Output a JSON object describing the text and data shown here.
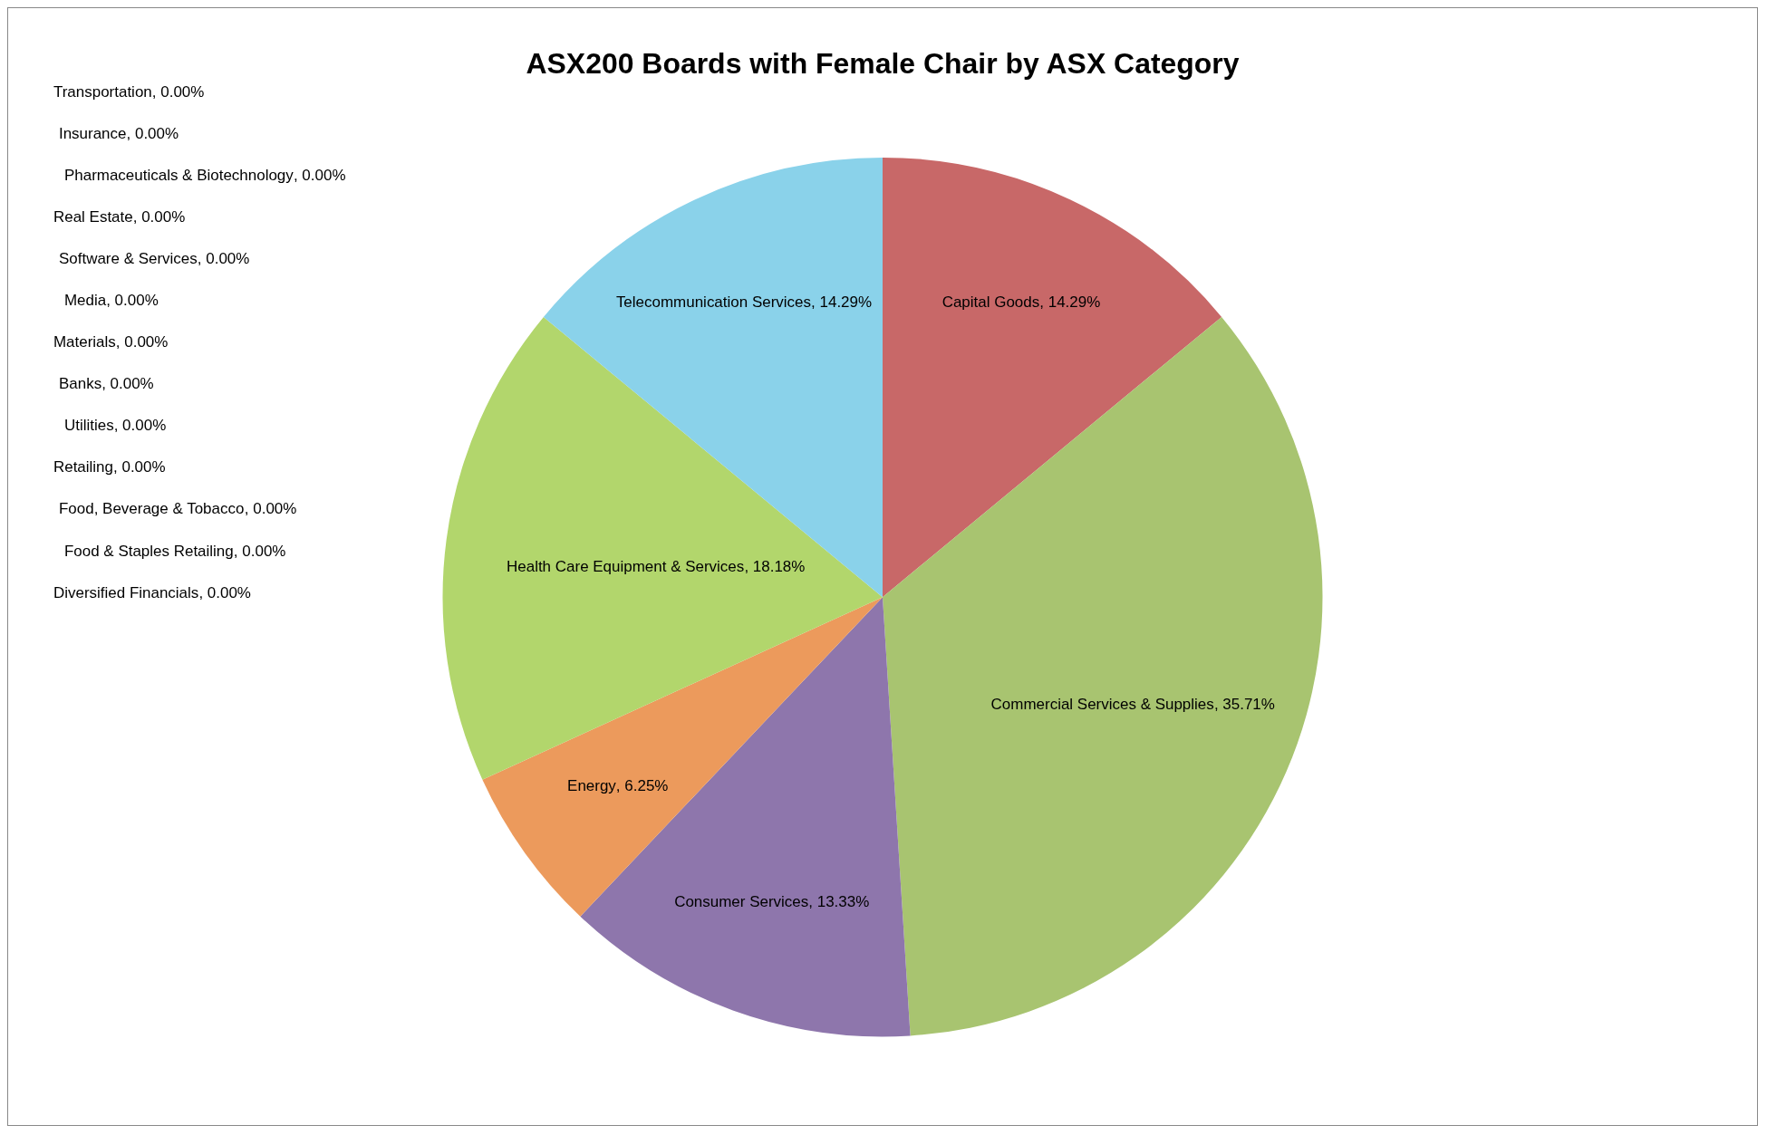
{
  "chart_data": {
    "type": "pie",
    "title": "ASX200 Boards with Female Chair by ASX Category",
    "categories": [
      "Capital Goods",
      "Commercial Services & Supplies",
      "Consumer Services",
      "Energy",
      "Health Care Equipment & Services",
      "Telecommunication Services",
      "Transportation",
      "Insurance",
      "Pharmaceuticals & Biotechnology",
      "Real Estate",
      "Software & Services",
      "Media",
      "Materials",
      "Banks",
      "Utilities",
      "Retailing",
      "Food, Beverage & Tobacco",
      "Food & Staples Retailing",
      "Diversified Financials"
    ],
    "values": [
      14.29,
      35.71,
      13.33,
      6.25,
      18.18,
      14.29,
      0,
      0,
      0,
      0,
      0,
      0,
      0,
      0,
      0,
      0,
      0,
      0,
      0
    ],
    "value_labels": [
      ", 14.29%",
      ", 35.71%",
      ", 13.33%",
      ", 6.25%",
      ", 18.18%",
      ", 14.29%",
      ", 0.00%",
      ", 0.00%",
      ", 0.00%",
      ", 0.00%",
      ", 0.00%",
      ", 0.00%",
      ", 0.00%",
      ", 0.00%",
      ", 0.00%",
      ", 0.00%",
      ", 0.00%",
      ", 0.00%",
      ", 0.00%"
    ],
    "colors": [
      "#c86868",
      "#a8c470",
      "#8e76ac",
      "#ec9a5c",
      "#b2d66c",
      "#8ad2ea",
      "#4f81bd",
      "#c0504d",
      "#9bbb59",
      "#8064a2",
      "#4bacc6",
      "#f79646",
      "#2c4d75",
      "#772c2a",
      "#5f7530",
      "#4d3b62",
      "#276a7c",
      "#b65708",
      "#729aca"
    ],
    "legend": false
  }
}
